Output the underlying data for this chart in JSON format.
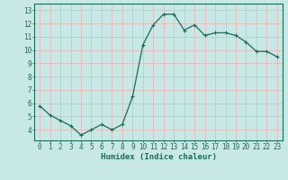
{
  "x": [
    0,
    1,
    2,
    3,
    4,
    5,
    6,
    7,
    8,
    9,
    10,
    11,
    12,
    13,
    14,
    15,
    16,
    17,
    18,
    19,
    20,
    21,
    22,
    23
  ],
  "y": [
    5.8,
    5.1,
    4.7,
    4.3,
    3.6,
    4.0,
    4.4,
    4.0,
    4.4,
    6.5,
    10.4,
    11.9,
    12.7,
    12.7,
    11.5,
    11.9,
    11.1,
    11.3,
    11.3,
    11.1,
    10.6,
    9.9,
    9.9,
    9.5
  ],
  "line_color": "#1a6b5a",
  "marker": "+",
  "marker_size": 3,
  "marker_lw": 0.8,
  "line_width": 0.9,
  "bg_color": "#c8e8e5",
  "grid_color": "#e8b8b8",
  "axis_color": "#1a6b5a",
  "xlabel": "Humidex (Indice chaleur)",
  "xlim": [
    -0.5,
    23.5
  ],
  "ylim": [
    3.2,
    13.5
  ],
  "yticks": [
    4,
    5,
    6,
    7,
    8,
    9,
    10,
    11,
    12,
    13
  ],
  "xticks": [
    0,
    1,
    2,
    3,
    4,
    5,
    6,
    7,
    8,
    9,
    10,
    11,
    12,
    13,
    14,
    15,
    16,
    17,
    18,
    19,
    20,
    21,
    22,
    23
  ],
  "xlabel_fontsize": 6.5,
  "tick_fontsize": 5.5,
  "label_color": "#1a6b5a"
}
